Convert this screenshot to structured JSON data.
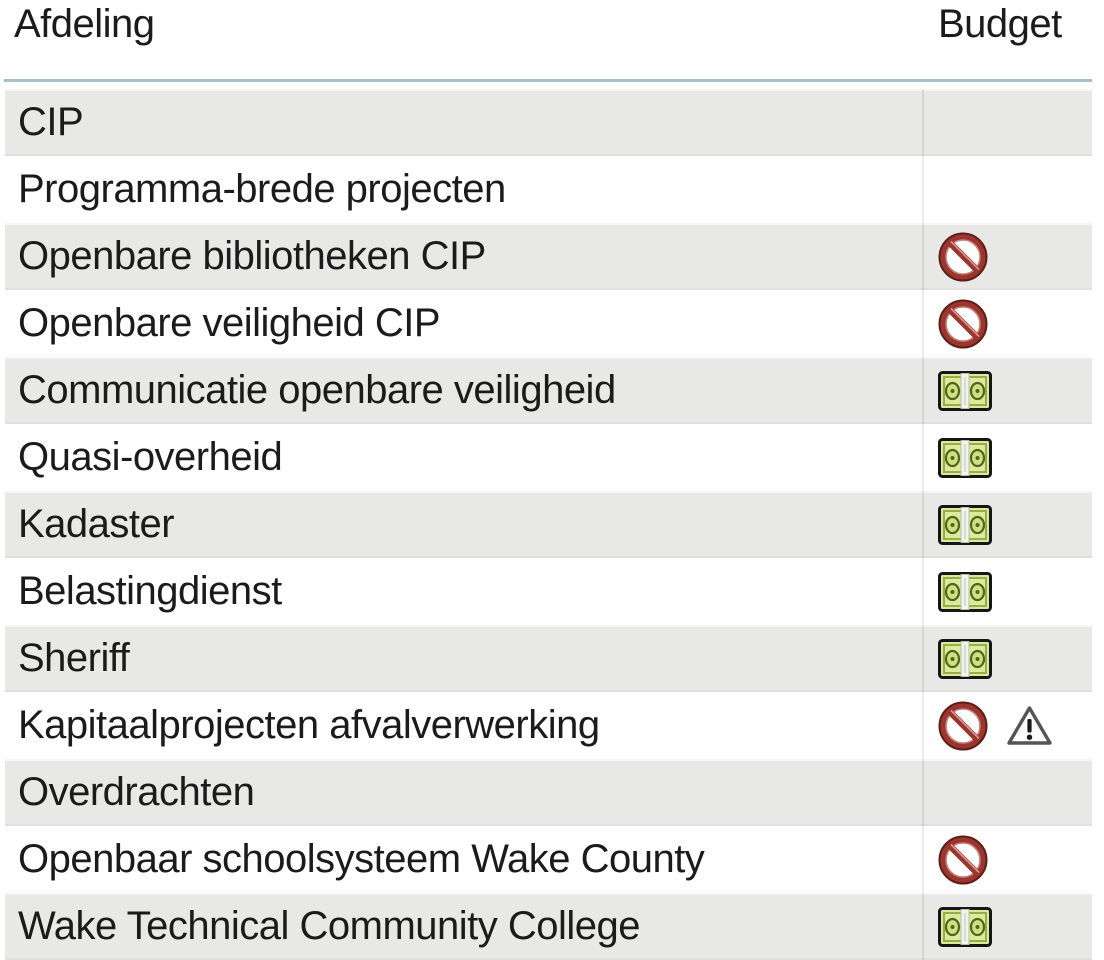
{
  "table": {
    "columns": [
      {
        "label": "Afdeling"
      },
      {
        "label": "Budget"
      }
    ],
    "rows": [
      {
        "name": "CIP",
        "icons": []
      },
      {
        "name": "Programma-brede projecten",
        "icons": []
      },
      {
        "name": "Openbare bibliotheken CIP",
        "icons": [
          "blocked"
        ]
      },
      {
        "name": "Openbare veiligheid CIP",
        "icons": [
          "blocked"
        ]
      },
      {
        "name": "Communicatie openbare veiligheid",
        "icons": [
          "money"
        ]
      },
      {
        "name": "Quasi-overheid",
        "icons": [
          "money"
        ]
      },
      {
        "name": "Kadaster",
        "icons": [
          "money"
        ]
      },
      {
        "name": "Belastingdienst",
        "icons": [
          "money"
        ]
      },
      {
        "name": "Sheriff",
        "icons": [
          "money"
        ]
      },
      {
        "name": "Kapitaalprojecten afvalverwerking",
        "icons": [
          "blocked",
          "warning"
        ]
      },
      {
        "name": "Overdrachten",
        "icons": []
      },
      {
        "name": "Openbaar schoolsysteem Wake County",
        "icons": [
          "blocked"
        ]
      },
      {
        "name": "Wake Technical Community College",
        "icons": [
          "money"
        ]
      }
    ]
  },
  "icon_names": {
    "blocked": "blocked-icon",
    "money": "money-icon",
    "warning": "warning-icon"
  },
  "colors": {
    "text": "#1b1b1b",
    "row_alt_bg": "#e8e8e6",
    "header_rule": "#a4c3c9",
    "column_divider": "rgba(0,0,0,0.08)",
    "blocked_ring": "#9a362e",
    "blocked_edge": "#5f1d18",
    "money_fill": "#dcea9e",
    "money_border": "#161616",
    "money_detail": "#55631f",
    "warning_stroke": "#555555",
    "warning_mark": "#1a1a1a"
  }
}
